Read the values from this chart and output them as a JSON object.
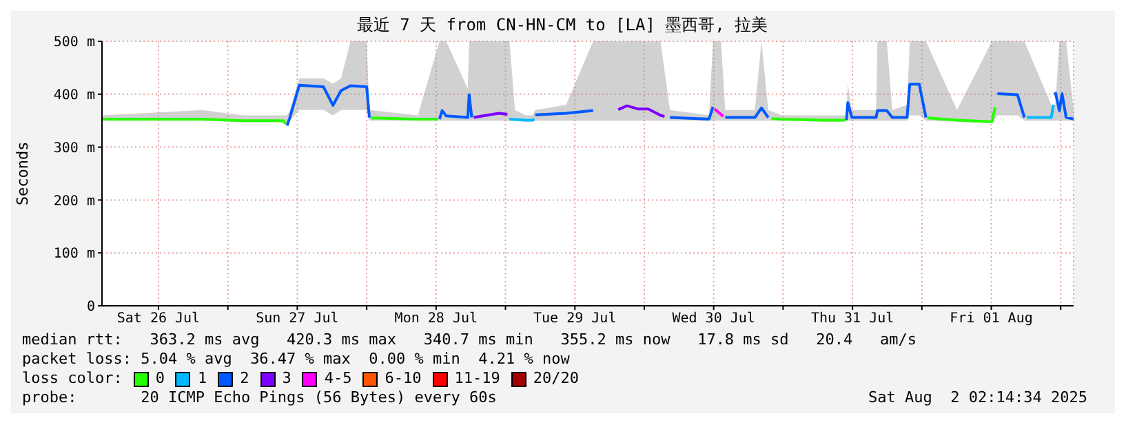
{
  "chart_data": {
    "type": "line",
    "title": "最近 7 天 from CN-HN-CM to [LA] 墨西哥, 拉美",
    "ylabel": "Seconds",
    "xlim": [
      "2025-07-26T02:14",
      "2025-08-02T02:14"
    ],
    "xticks": [
      {
        "value": "2025-07-26T12:00",
        "label": "Sat 26 Jul"
      },
      {
        "value": "2025-07-27T00:00",
        "label": null
      },
      {
        "value": "2025-07-27T12:00",
        "label": "Sun 27 Jul"
      },
      {
        "value": "2025-07-28T00:00",
        "label": null
      },
      {
        "value": "2025-07-28T12:00",
        "label": "Mon 28 Jul"
      },
      {
        "value": "2025-07-29T00:00",
        "label": null
      },
      {
        "value": "2025-07-29T12:00",
        "label": "Tue 29 Jul"
      },
      {
        "value": "2025-07-30T00:00",
        "label": null
      },
      {
        "value": "2025-07-30T12:00",
        "label": "Wed 30 Jul"
      },
      {
        "value": "2025-07-31T00:00",
        "label": null
      },
      {
        "value": "2025-07-31T12:00",
        "label": "Thu 31 Jul"
      },
      {
        "value": "2025-08-01T00:00",
        "label": null
      },
      {
        "value": "2025-08-01T12:00",
        "label": "Fri 01 Aug"
      },
      {
        "value": "2025-08-02T00:00",
        "label": null
      }
    ],
    "ylim": [
      0,
      500
    ],
    "yticks": [
      0,
      {
        "value": 100,
        "label": "100 m"
      },
      {
        "value": 200,
        "label": "200 m"
      },
      {
        "value": 300,
        "label": "300 m"
      },
      {
        "value": 400,
        "label": "400 m"
      },
      {
        "value": 500,
        "label": "500 m"
      }
    ],
    "grid": true,
    "legend": "bottom",
    "legend_title": "loss color:",
    "series": [
      {
        "name": "0",
        "color": "#26ff00",
        "x": [
          "2025-07-26T02:14",
          "2025-07-26T19:34",
          "2025-07-27T02:34",
          "2025-07-27T09:33",
          "2025-07-27T10:00",
          "2025-07-27T10:05",
          "2025-07-28T00:45",
          "2025-07-28T08:51",
          "2025-07-28T12:15",
          "2025-07-28T12:20",
          "2025-07-30T22:00",
          "2025-07-30T23:46",
          "2025-07-31T06:46",
          "2025-07-31T10:40",
          "2025-07-31T10:45",
          "2025-08-01T01:00",
          "2025-08-01T06:04",
          "2025-08-01T12:07",
          "2025-08-01T12:40"
        ],
        "values": [
          353,
          353,
          350,
          350,
          344,
          null,
          355,
          353,
          353,
          null,
          354,
          353,
          351,
          351,
          null,
          355,
          351,
          348,
          375
        ]
      },
      {
        "name": "1",
        "color": "#00b8ff",
        "x": [
          "2025-07-29T00:40",
          "2025-07-29T03:30",
          "2025-07-29T04:40",
          "2025-07-29T05:00",
          "2025-07-29T05:02",
          "2025-08-01T18:10",
          "2025-08-01T22:22",
          "2025-08-01T22:45"
        ],
        "values": [
          353,
          351,
          351,
          353,
          null,
          356,
          356,
          380
        ]
      },
      {
        "name": "2",
        "color": "#0059ff",
        "x": [
          "2025-07-26T02:14",
          "2025-07-26T19:34",
          "2025-07-27T02:34",
          "2025-07-27T09:33",
          "2025-07-27T10:15",
          "2025-07-27T10:43",
          "2025-07-27T12:21",
          "2025-07-27T16:32",
          "2025-07-27T18:10",
          "2025-07-27T19:34",
          "2025-07-27T21:12",
          "2025-07-28T00:00",
          "2025-07-28T00:28",
          "2025-07-28T08:51",
          "2025-07-28T12:35",
          "2025-07-28T13:03",
          "2025-07-28T13:45",
          "2025-07-28T17:29",
          "2025-07-28T17:43",
          "2025-07-28T18:10",
          "2025-07-28T22:50",
          "2025-07-29T00:42",
          "2025-07-29T01:38",
          "2025-07-29T03:30",
          "2025-07-29T04:40",
          "2025-07-29T05:08",
          "2025-07-29T10:29",
          "2025-07-29T15:09",
          "2025-07-30T00:56",
          "2025-07-30T01:38",
          "2025-07-30T02:48",
          "2025-07-30T04:26",
          "2025-07-30T11:11",
          "2025-07-30T11:53",
          "2025-07-30T13:17",
          "2025-07-30T13:59",
          "2025-07-30T19:07",
          "2025-07-30T20:16",
          "2025-07-30T21:26",
          "2025-07-30T23:46",
          "2025-07-31T06:46",
          "2025-07-31T10:57",
          "2025-07-31T11:11",
          "2025-07-31T11:53",
          "2025-07-31T16:05",
          "2025-07-31T16:19",
          "2025-07-31T17:56",
          "2025-07-31T18:52",
          "2025-07-31T21:26",
          "2025-07-31T21:54",
          "2025-07-31T23:32",
          "2025-08-01T00:42",
          "2025-08-01T06:04",
          "2025-08-01T12:07",
          "2025-08-01T13:03",
          "2025-08-01T16:32",
          "2025-08-01T17:43",
          "2025-08-01T22:22",
          "2025-08-01T23:04",
          "2025-08-01T23:46",
          "2025-08-02T00:14",
          "2025-08-02T00:56",
          "2025-08-02T02:14"
        ],
        "values": [
          null,
          null,
          null,
          null,
          341,
          356,
          417,
          414,
          379,
          407,
          416,
          414,
          356,
          null,
          353,
          369,
          359,
          356,
          399,
          356,
          null,
          null,
          null,
          null,
          null,
          361,
          364,
          369,
          null,
          null,
          null,
          356,
          353,
          376,
          null,
          356,
          356,
          374,
          356,
          null,
          null,
          351,
          384,
          356,
          356,
          369,
          369,
          356,
          356,
          419,
          419,
          356,
          null,
          null,
          401,
          399,
          356,
          null,
          404,
          369,
          401,
          356,
          353
        ],
        "lower": [
          350,
          350,
          347,
          347,
          338,
          350,
          370,
          370,
          360,
          370,
          370,
          370,
          350,
          350,
          350,
          350,
          350,
          350,
          350,
          350,
          350,
          350,
          350,
          348,
          348,
          350,
          350,
          350,
          350,
          350,
          350,
          350,
          350,
          350,
          350,
          350,
          350,
          350,
          350,
          350,
          348,
          348,
          350,
          350,
          350,
          350,
          350,
          350,
          350,
          360,
          360,
          350,
          348,
          345,
          360,
          360,
          350,
          350,
          350,
          350,
          350,
          350,
          350
        ],
        "upper": [
          360,
          370,
          360,
          360,
          360,
          370,
          430,
          430,
          420,
          430,
          500,
          500,
          370,
          360,
          500,
          500,
          500,
          410,
          500,
          500,
          500,
          500,
          370,
          360,
          360,
          370,
          380,
          500,
          500,
          500,
          500,
          370,
          360,
          500,
          500,
          370,
          370,
          500,
          370,
          360,
          360,
          360,
          420,
          370,
          370,
          500,
          500,
          370,
          380,
          500,
          500,
          500,
          370,
          500,
          500,
          500,
          500,
          380,
          380,
          500,
          500,
          500,
          370
        ]
      },
      {
        "name": "3",
        "color": "#7e00ff",
        "x": [
          "2025-07-28T18:30",
          "2025-07-28T22:50",
          "2025-07-29T00:20",
          "2025-07-29T00:25",
          "2025-07-29T19:30",
          "2025-07-29T21:00",
          "2025-07-29T23:00",
          "2025-07-30T00:40",
          "2025-07-30T02:50",
          "2025-07-30T03:30"
        ],
        "values": [
          356,
          364,
          362,
          null,
          371,
          378,
          372,
          372,
          360,
          358
        ]
      },
      {
        "name": "4-5",
        "color": "#ff00ff",
        "x": [
          "2025-07-30T12:10",
          "2025-07-30T13:40"
        ],
        "values": [
          372,
          358
        ]
      },
      {
        "name": "6-10",
        "color": "#ff5500"
      },
      {
        "name": "11-19",
        "color": "#ff0000"
      },
      {
        "name": "20/20",
        "color": "#a10000"
      }
    ],
    "annotations": [
      "median rtt:   363.2 ms avg   420.3 ms max   340.7 ms min   355.2 ms now   17.8 ms sd   20.4   am/s",
      "packet loss: 5.04 % avg  36.47 % max  0.00 % min  4.21 % now",
      "probe:       20 ICMP Echo Pings (56 Bytes) every 60s",
      "Sat Aug  2 02:14:34 2025"
    ]
  }
}
